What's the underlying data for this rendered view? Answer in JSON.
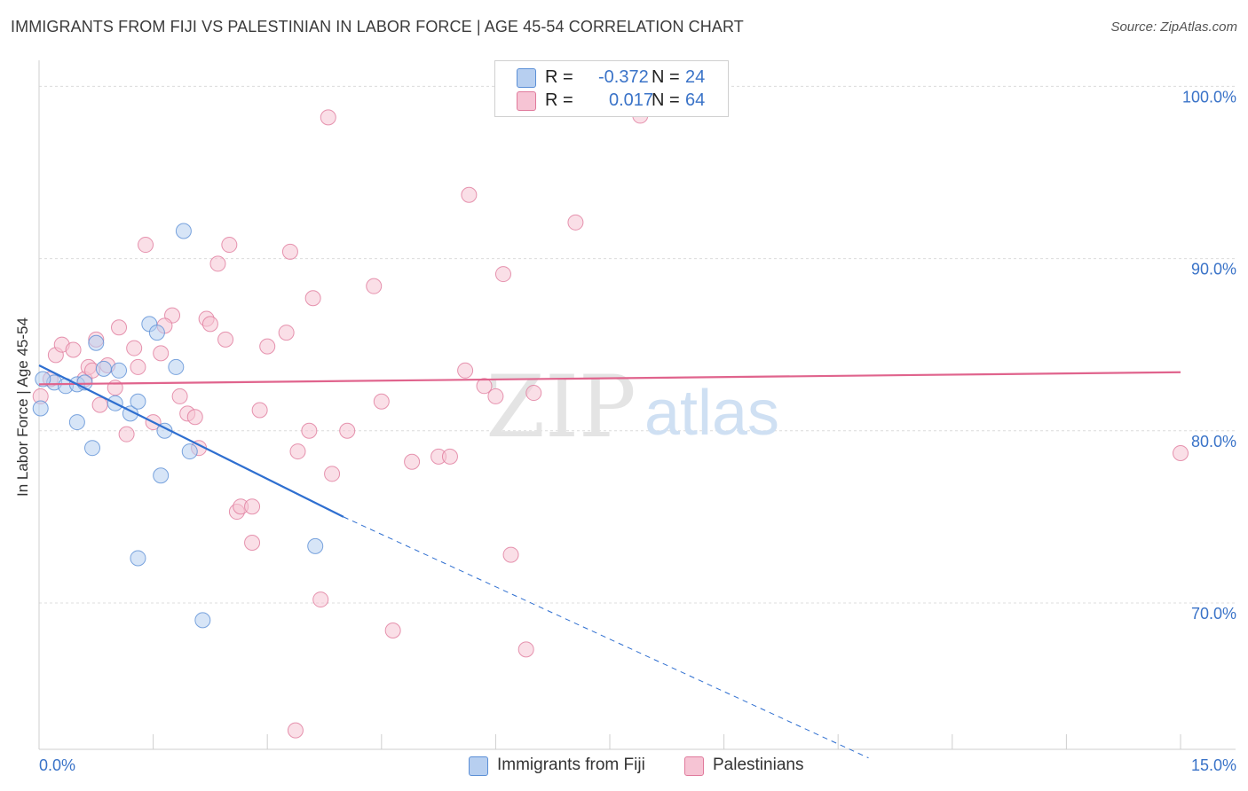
{
  "title": "IMMIGRANTS FROM FIJI VS PALESTINIAN IN LABOR FORCE | AGE 45-54 CORRELATION CHART",
  "source": "Source: ZipAtlas.com",
  "watermark": {
    "zip": "ZIP",
    "atlas": "atlas"
  },
  "legend": {
    "fiji": {
      "r_label": "R =",
      "r_value": "-0.372",
      "n_label": "N =",
      "n_value": "24"
    },
    "pal": {
      "r_label": "R =",
      "r_value": "0.017",
      "n_label": "N =",
      "n_value": "64"
    }
  },
  "bottom_legend": {
    "fiji": "Immigrants from Fiji",
    "pal": "Palestinians"
  },
  "chart_data": {
    "type": "scatter",
    "title": "IMMIGRANTS FROM FIJI VS PALESTINIAN IN LABOR FORCE | AGE 45-54 CORRELATION CHART",
    "xlabel": "",
    "ylabel": "In Labor Force | Age 45-54",
    "xlim": [
      0,
      15
    ],
    "ylim": [
      61.5,
      101
    ],
    "x_tick_labels": [
      {
        "value": 0,
        "label": "0.0%"
      },
      {
        "value": 15,
        "label": "15.0%"
      }
    ],
    "y_tick_labels": [
      {
        "value": 70,
        "label": "70.0%"
      },
      {
        "value": 80,
        "label": "80.0%"
      },
      {
        "value": 90,
        "label": "90.0%"
      },
      {
        "value": 100,
        "label": "100.0%"
      }
    ],
    "grid": true,
    "colors": {
      "fiji": "#5b8fd6",
      "fiji_fill": "#b7cff0",
      "pal": "#e07a9c",
      "pal_fill": "#f6c4d4",
      "fiji_line": "#2f6fd0",
      "pal_line": "#e0648d",
      "tick_label": "#3a73c8"
    },
    "series": [
      {
        "name": "Immigrants from Fiji",
        "key": "fiji",
        "points": [
          [
            0.02,
            81.3
          ],
          [
            0.2,
            82.8
          ],
          [
            0.35,
            82.6
          ],
          [
            0.5,
            82.7
          ],
          [
            0.6,
            82.8
          ],
          [
            0.5,
            80.5
          ],
          [
            0.7,
            79.0
          ],
          [
            0.75,
            85.1
          ],
          [
            0.85,
            83.6
          ],
          [
            1.05,
            83.5
          ],
          [
            1.0,
            81.6
          ],
          [
            1.2,
            81.0
          ],
          [
            1.3,
            81.7
          ],
          [
            1.45,
            86.2
          ],
          [
            1.55,
            85.7
          ],
          [
            1.65,
            80.0
          ],
          [
            1.6,
            77.4
          ],
          [
            1.8,
            83.7
          ],
          [
            1.9,
            91.6
          ],
          [
            1.98,
            78.8
          ],
          [
            1.3,
            72.6
          ],
          [
            3.63,
            73.3
          ],
          [
            2.15,
            69.0
          ],
          [
            0.05,
            83.0
          ]
        ],
        "trend": {
          "x": [
            0.0,
            4.0
          ],
          "y": [
            83.8,
            75.0
          ]
        },
        "trend_dashed": {
          "x": [
            4.0,
            10.9
          ],
          "y": [
            75.0,
            61.0
          ]
        }
      },
      {
        "name": "Palestinians",
        "key": "pal",
        "points": [
          [
            0.02,
            82.0
          ],
          [
            0.15,
            83.0
          ],
          [
            0.22,
            84.4
          ],
          [
            0.3,
            85.0
          ],
          [
            0.45,
            84.7
          ],
          [
            0.6,
            83.0
          ],
          [
            0.65,
            83.7
          ],
          [
            0.7,
            83.5
          ],
          [
            0.75,
            85.3
          ],
          [
            0.8,
            81.5
          ],
          [
            0.9,
            83.8
          ],
          [
            1.0,
            82.5
          ],
          [
            1.05,
            86.0
          ],
          [
            1.15,
            79.8
          ],
          [
            1.25,
            84.8
          ],
          [
            1.3,
            83.7
          ],
          [
            1.4,
            90.8
          ],
          [
            1.5,
            80.5
          ],
          [
            1.6,
            84.5
          ],
          [
            1.75,
            86.7
          ],
          [
            1.65,
            86.1
          ],
          [
            1.85,
            82.0
          ],
          [
            1.95,
            81.0
          ],
          [
            2.05,
            80.8
          ],
          [
            2.1,
            79.0
          ],
          [
            2.2,
            86.5
          ],
          [
            2.25,
            86.2
          ],
          [
            2.35,
            89.7
          ],
          [
            2.45,
            85.3
          ],
          [
            2.5,
            90.8
          ],
          [
            2.6,
            75.3
          ],
          [
            2.65,
            75.6
          ],
          [
            2.8,
            75.6
          ],
          [
            2.8,
            73.5
          ],
          [
            2.9,
            81.2
          ],
          [
            3.0,
            84.9
          ],
          [
            3.25,
            85.7
          ],
          [
            3.3,
            90.4
          ],
          [
            3.4,
            78.8
          ],
          [
            3.55,
            80.0
          ],
          [
            3.6,
            87.7
          ],
          [
            3.7,
            70.2
          ],
          [
            3.85,
            77.5
          ],
          [
            3.8,
            98.2
          ],
          [
            4.05,
            80.0
          ],
          [
            4.4,
            88.4
          ],
          [
            4.5,
            81.7
          ],
          [
            4.65,
            68.4
          ],
          [
            4.9,
            78.2
          ],
          [
            5.25,
            78.5
          ],
          [
            5.4,
            78.5
          ],
          [
            5.6,
            83.5
          ],
          [
            5.65,
            93.7
          ],
          [
            5.85,
            82.6
          ],
          [
            6.0,
            82.0
          ],
          [
            6.1,
            89.1
          ],
          [
            6.2,
            72.8
          ],
          [
            6.4,
            67.3
          ],
          [
            6.5,
            82.2
          ],
          [
            7.05,
            92.1
          ],
          [
            7.9,
            98.3
          ],
          [
            8.6,
            100.0
          ],
          [
            15.0,
            78.7
          ],
          [
            3.37,
            62.6
          ]
        ],
        "trend": {
          "x": [
            0.0,
            15.0
          ],
          "y": [
            82.7,
            83.4
          ]
        }
      }
    ]
  }
}
